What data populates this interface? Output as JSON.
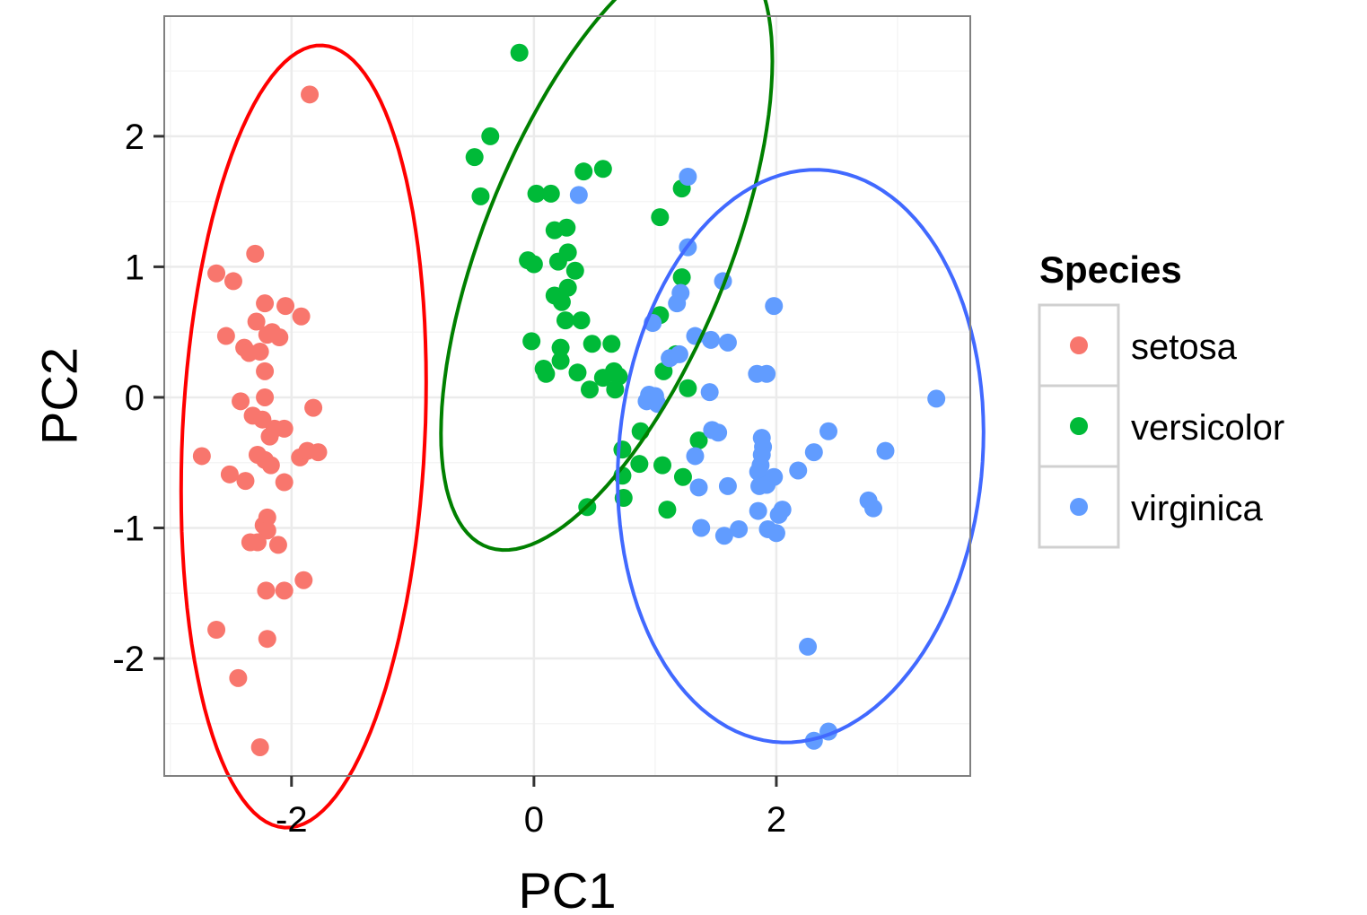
{
  "chart_data": {
    "type": "scatter",
    "xlabel": "PC1",
    "ylabel": "PC2",
    "xlim": [
      -3.05,
      3.6
    ],
    "ylim": [
      -2.9,
      2.92
    ],
    "x_ticks": [
      -2,
      0,
      2
    ],
    "y_ticks": [
      -2,
      -1,
      0,
      1,
      2
    ],
    "x_tick_labels": [
      "-2",
      "0",
      "2"
    ],
    "y_tick_labels": [
      "-2",
      "-1",
      "0",
      "1",
      "2"
    ],
    "grid": true,
    "background": "#ffffff",
    "panel_border": "#808080",
    "gridline_color": "#ebebeb",
    "legend": {
      "title": "Species",
      "position": "right",
      "entries": [
        "setosa",
        "versicolor",
        "virginica"
      ]
    },
    "series": [
      {
        "name": "setosa",
        "color": "#F8766D",
        "ellipse_color": "#FF0000",
        "ellipse": {
          "cx": -1.9,
          "cy": -0.3,
          "rx": 1.0,
          "ry": 3.0,
          "angle": -3
        },
        "points": [
          [
            -1.85,
            2.32
          ],
          [
            -2.3,
            1.1
          ],
          [
            -2.62,
            0.95
          ],
          [
            -2.48,
            0.89
          ],
          [
            -2.22,
            0.72
          ],
          [
            -2.05,
            0.7
          ],
          [
            -1.92,
            0.62
          ],
          [
            -2.29,
            0.58
          ],
          [
            -2.54,
            0.47
          ],
          [
            -2.2,
            0.48
          ],
          [
            -2.16,
            0.5
          ],
          [
            -2.1,
            0.46
          ],
          [
            -2.39,
            0.38
          ],
          [
            -2.35,
            0.34
          ],
          [
            -2.26,
            0.35
          ],
          [
            -2.22,
            0.2
          ],
          [
            -2.22,
            0.0
          ],
          [
            -2.42,
            -0.03
          ],
          [
            -2.32,
            -0.14
          ],
          [
            -2.24,
            -0.17
          ],
          [
            -1.82,
            -0.08
          ],
          [
            -2.14,
            -0.24
          ],
          [
            -2.06,
            -0.24
          ],
          [
            -2.18,
            -0.3
          ],
          [
            -2.74,
            -0.45
          ],
          [
            -2.28,
            -0.44
          ],
          [
            -1.93,
            -0.46
          ],
          [
            -2.22,
            -0.48
          ],
          [
            -1.87,
            -0.41
          ],
          [
            -2.17,
            -0.52
          ],
          [
            -1.78,
            -0.42
          ],
          [
            -2.51,
            -0.59
          ],
          [
            -2.38,
            -0.64
          ],
          [
            -2.06,
            -0.65
          ],
          [
            -2.2,
            -0.92
          ],
          [
            -2.23,
            -0.98
          ],
          [
            -2.2,
            -1.02
          ],
          [
            -2.34,
            -1.11
          ],
          [
            -2.28,
            -1.11
          ],
          [
            -2.11,
            -1.13
          ],
          [
            -1.9,
            -1.4
          ],
          [
            -2.21,
            -1.48
          ],
          [
            -2.06,
            -1.48
          ],
          [
            -2.62,
            -1.78
          ],
          [
            -2.2,
            -1.85
          ],
          [
            -2.44,
            -2.15
          ],
          [
            -2.26,
            -2.68
          ]
        ]
      },
      {
        "name": "versicolor",
        "color": "#00BA38",
        "ellipse_color": "#008000",
        "ellipse": {
          "cx": 0.6,
          "cy": 1.15,
          "rx": 1.0,
          "ry": 2.5,
          "angle": -24
        },
        "points": [
          [
            -0.12,
            2.64
          ],
          [
            -0.36,
            2.0
          ],
          [
            -0.49,
            1.84
          ],
          [
            0.41,
            1.73
          ],
          [
            0.57,
            1.75
          ],
          [
            -0.44,
            1.54
          ],
          [
            0.02,
            1.56
          ],
          [
            0.14,
            1.56
          ],
          [
            1.22,
            1.6
          ],
          [
            1.04,
            1.38
          ],
          [
            0.17,
            1.28
          ],
          [
            0.27,
            1.3
          ],
          [
            0.28,
            1.11
          ],
          [
            0.2,
            1.04
          ],
          [
            -0.05,
            1.05
          ],
          [
            0.0,
            1.02
          ],
          [
            0.34,
            0.97
          ],
          [
            1.22,
            0.92
          ],
          [
            0.17,
            0.78
          ],
          [
            0.28,
            0.84
          ],
          [
            0.23,
            0.73
          ],
          [
            1.04,
            0.63
          ],
          [
            0.26,
            0.59
          ],
          [
            0.39,
            0.59
          ],
          [
            -0.02,
            0.43
          ],
          [
            0.48,
            0.41
          ],
          [
            0.64,
            0.41
          ],
          [
            0.22,
            0.38
          ],
          [
            1.17,
            0.33
          ],
          [
            0.22,
            0.28
          ],
          [
            0.08,
            0.22
          ],
          [
            0.1,
            0.18
          ],
          [
            0.36,
            0.19
          ],
          [
            1.07,
            0.2
          ],
          [
            0.57,
            0.15
          ],
          [
            0.66,
            0.2
          ],
          [
            0.7,
            0.16
          ],
          [
            0.46,
            0.06
          ],
          [
            0.67,
            0.06
          ],
          [
            1.27,
            0.07
          ],
          [
            0.88,
            -0.26
          ],
          [
            1.36,
            -0.33
          ],
          [
            0.73,
            -0.4
          ],
          [
            0.73,
            -0.6
          ],
          [
            0.87,
            -0.51
          ],
          [
            1.06,
            -0.52
          ],
          [
            1.23,
            -0.61
          ],
          [
            0.74,
            -0.77
          ],
          [
            0.44,
            -0.84
          ],
          [
            1.1,
            -0.86
          ]
        ]
      },
      {
        "name": "virginica",
        "color": "#619CFF",
        "ellipse_color": "#4169FF",
        "ellipse": {
          "cx": 2.2,
          "cy": -0.45,
          "rx": 1.5,
          "ry": 2.2,
          "angle": -6
        },
        "points": [
          [
            1.27,
            1.69
          ],
          [
            0.37,
            1.55
          ],
          [
            1.27,
            1.15
          ],
          [
            1.56,
            0.89
          ],
          [
            1.98,
            0.7
          ],
          [
            1.21,
            0.8
          ],
          [
            1.18,
            0.72
          ],
          [
            0.98,
            0.57
          ],
          [
            1.33,
            0.47
          ],
          [
            1.46,
            0.44
          ],
          [
            1.6,
            0.42
          ],
          [
            1.84,
            0.18
          ],
          [
            1.92,
            0.18
          ],
          [
            1.12,
            0.3
          ],
          [
            1.2,
            0.33
          ],
          [
            0.95,
            0.02
          ],
          [
            1.0,
            0.01
          ],
          [
            0.93,
            -0.03
          ],
          [
            1.02,
            -0.05
          ],
          [
            1.45,
            0.04
          ],
          [
            3.32,
            -0.01
          ],
          [
            1.47,
            -0.25
          ],
          [
            1.52,
            -0.27
          ],
          [
            1.88,
            -0.31
          ],
          [
            2.43,
            -0.26
          ],
          [
            1.89,
            -0.38
          ],
          [
            1.88,
            -0.44
          ],
          [
            2.31,
            -0.42
          ],
          [
            2.9,
            -0.41
          ],
          [
            2.18,
            -0.56
          ],
          [
            1.33,
            -0.45
          ],
          [
            1.87,
            -0.52
          ],
          [
            1.85,
            -0.57
          ],
          [
            1.98,
            -0.61
          ],
          [
            1.86,
            -0.68
          ],
          [
            1.92,
            -0.67
          ],
          [
            1.36,
            -0.69
          ],
          [
            1.6,
            -0.68
          ],
          [
            2.05,
            -0.86
          ],
          [
            2.02,
            -0.9
          ],
          [
            2.76,
            -0.79
          ],
          [
            2.8,
            -0.85
          ],
          [
            1.85,
            -0.87
          ],
          [
            1.38,
            -1.0
          ],
          [
            1.57,
            -1.06
          ],
          [
            1.69,
            -1.01
          ],
          [
            1.93,
            -1.01
          ],
          [
            2.0,
            -1.04
          ],
          [
            2.26,
            -1.91
          ],
          [
            2.43,
            -2.56
          ],
          [
            2.31,
            -2.63
          ]
        ]
      }
    ]
  }
}
